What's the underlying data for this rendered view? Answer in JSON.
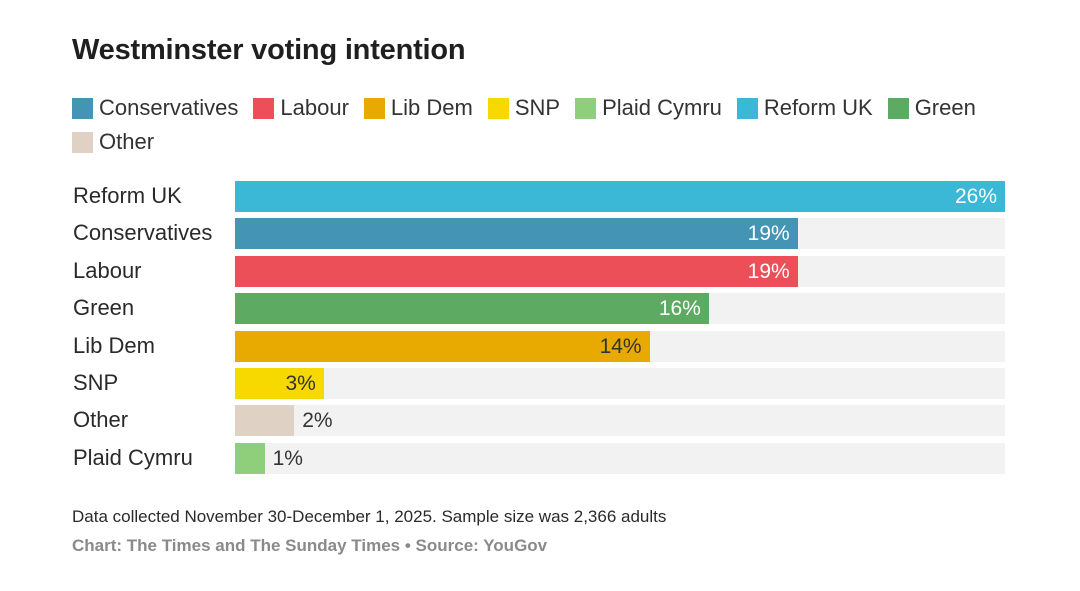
{
  "chart_data": {
    "type": "bar",
    "orientation": "horizontal",
    "title": "Westminster voting intention",
    "legend": {
      "placement": "top-left",
      "entries": [
        {
          "name": "Conservatives",
          "color": "#4394b5"
        },
        {
          "name": "Labour",
          "color": "#ec4f57"
        },
        {
          "name": "Lib Dem",
          "color": "#e8aa00"
        },
        {
          "name": "SNP",
          "color": "#f7d900"
        },
        {
          "name": "Plaid Cymru",
          "color": "#8fcf7c"
        },
        {
          "name": "Reform UK",
          "color": "#3ab8d6"
        },
        {
          "name": "Green",
          "color": "#5daa62"
        },
        {
          "name": "Other",
          "color": "#dfd2c5"
        }
      ]
    },
    "categories": [
      "Reform UK",
      "Conservatives",
      "Labour",
      "Green",
      "Lib Dem",
      "SNP",
      "Other",
      "Plaid Cymru"
    ],
    "values": [
      26,
      19,
      19,
      16,
      14,
      3,
      2,
      1
    ],
    "value_labels": [
      "26%",
      "19%",
      "19%",
      "16%",
      "14%",
      "3%",
      "2%",
      "1%"
    ],
    "bar_colors": [
      "#3ab8d6",
      "#4394b5",
      "#ec4f57",
      "#5daa62",
      "#e8aa00",
      "#f7d900",
      "#dfd2c5",
      "#8fcf7c"
    ],
    "label_colors": [
      "#ffffff",
      "#ffffff",
      "#ffffff",
      "#ffffff",
      "#333333",
      "#333333",
      "#333333",
      "#333333"
    ],
    "xlim": [
      0,
      26
    ],
    "grid": false,
    "xlabel": "",
    "ylabel": ""
  },
  "footer": {
    "note": "Data collected November 30-December 1, 2025. Sample size was 2,366 adults",
    "source": "Chart: The Times and The Sunday Times • Source: YouGov"
  }
}
